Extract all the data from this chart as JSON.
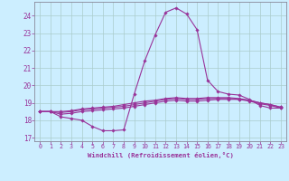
{
  "xlabel": "Windchill (Refroidissement éolien,°C)",
  "bg_color": "#cceeff",
  "grid_color": "#aacccc",
  "line_color": "#993399",
  "spine_color": "#888899",
  "xlim": [
    -0.5,
    23.5
  ],
  "ylim": [
    16.8,
    24.8
  ],
  "yticks": [
    17,
    18,
    19,
    20,
    21,
    22,
    23,
    24
  ],
  "xticks": [
    0,
    1,
    2,
    3,
    4,
    5,
    6,
    7,
    8,
    9,
    10,
    11,
    12,
    13,
    14,
    15,
    16,
    17,
    18,
    19,
    20,
    21,
    22,
    23
  ],
  "series": [
    [
      18.5,
      18.5,
      18.2,
      18.1,
      18.0,
      17.65,
      17.4,
      17.4,
      17.45,
      19.5,
      21.4,
      22.9,
      24.2,
      24.45,
      24.1,
      23.2,
      20.3,
      19.65,
      19.5,
      19.45,
      19.2,
      18.85,
      18.7,
      18.7
    ],
    [
      18.5,
      18.5,
      18.35,
      18.4,
      18.5,
      18.55,
      18.6,
      18.65,
      18.7,
      18.8,
      18.9,
      19.0,
      19.1,
      19.15,
      19.1,
      19.1,
      19.15,
      19.2,
      19.2,
      19.2,
      19.1,
      18.95,
      18.85,
      18.7
    ],
    [
      18.5,
      18.5,
      18.45,
      18.5,
      18.6,
      18.65,
      18.7,
      18.75,
      18.8,
      18.9,
      19.0,
      19.1,
      19.2,
      19.25,
      19.2,
      19.2,
      19.25,
      19.25,
      19.25,
      19.2,
      19.15,
      19.0,
      18.9,
      18.75
    ],
    [
      18.5,
      18.5,
      18.5,
      18.55,
      18.65,
      18.7,
      18.75,
      18.8,
      18.9,
      19.0,
      19.1,
      19.15,
      19.25,
      19.3,
      19.25,
      19.25,
      19.3,
      19.3,
      19.3,
      19.25,
      19.15,
      19.0,
      18.9,
      18.75
    ]
  ]
}
